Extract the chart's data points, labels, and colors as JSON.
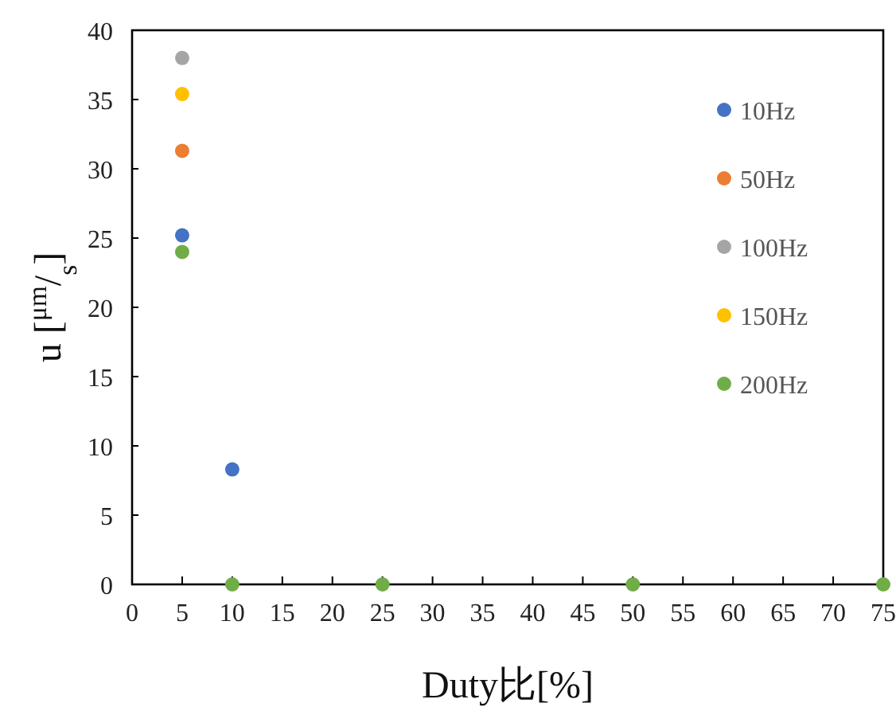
{
  "chart_data": {
    "type": "scatter",
    "xlabel": "Duty比[%]",
    "ylabel": "u [$^{μm}$/$_{s}$]",
    "x": [
      5,
      10,
      25,
      50,
      75
    ],
    "series": [
      {
        "name": "10Hz",
        "color": "#4472c4",
        "values": [
          25.2,
          8.3,
          null,
          null,
          null
        ]
      },
      {
        "name": "50Hz",
        "color": "#ed7d31",
        "values": [
          31.3,
          null,
          null,
          null,
          null
        ]
      },
      {
        "name": "100Hz",
        "color": "#a5a5a5",
        "values": [
          38,
          null,
          null,
          null,
          null
        ]
      },
      {
        "name": "150Hz",
        "color": "#ffc000",
        "values": [
          35.4,
          null,
          null,
          null,
          null
        ]
      },
      {
        "name": "200Hz",
        "color": "#70ad47",
        "values": [
          24,
          0,
          0,
          0,
          0
        ]
      }
    ],
    "xlim": [
      0,
      75
    ],
    "xticks": [
      0,
      5,
      10,
      15,
      20,
      25,
      30,
      35,
      40,
      45,
      50,
      55,
      60,
      65,
      70,
      75
    ],
    "ylim": [
      0,
      40
    ],
    "yticks": [
      0,
      5,
      10,
      15,
      20,
      25,
      30,
      35,
      40
    ],
    "grid": false,
    "legend": "right",
    "marker": "circle"
  }
}
